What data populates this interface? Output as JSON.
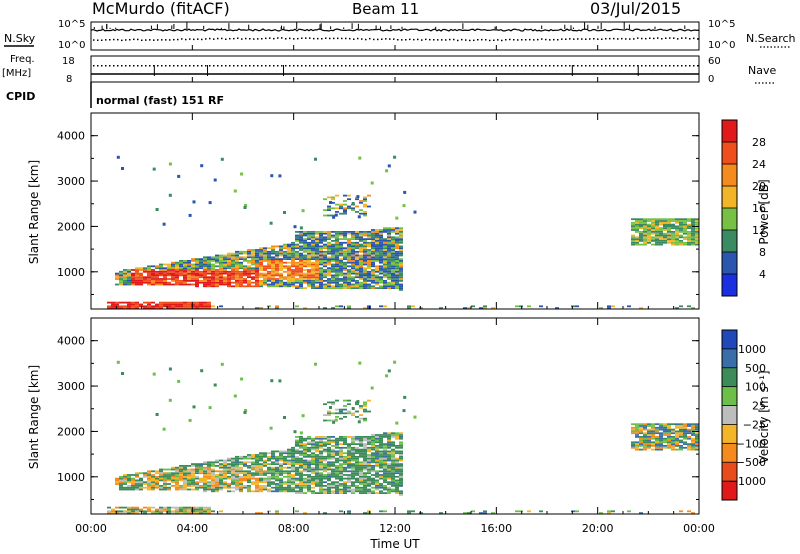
{
  "header": {
    "station": "McMurdo (fitACF)",
    "beam": "Beam 11",
    "date": "03/Jul/2015",
    "cpid_label": "CPID",
    "cpid_value": "normal (fast) 151 RF"
  },
  "noise_panel": {
    "left_label": "N.Sky",
    "right_label": "N.Search",
    "left_ticks": [
      "10^5",
      "10^0"
    ],
    "right_ticks": [
      "10^5",
      "10^0"
    ]
  },
  "freq_panel": {
    "left_label": "Freq.",
    "left_unit": "[MHz]",
    "right_label": "Nave",
    "left_ticks": [
      "18",
      "8"
    ],
    "right_ticks": [
      "60",
      "0"
    ]
  },
  "x_axis": {
    "label": "Time UT",
    "ticks": [
      "00:00",
      "04:00",
      "08:00",
      "12:00",
      "16:00",
      "20:00",
      "00:00"
    ]
  },
  "power_panel": {
    "ylabel": "Slant Range [km]",
    "yticks": [
      "1000",
      "2000",
      "3000",
      "4000"
    ],
    "colorbar_label": "Power [dB]",
    "colorbar_ticks": [
      "4",
      "8",
      "12",
      "16",
      "20",
      "24",
      "28"
    ],
    "colors": [
      "#1a2fe0",
      "#2a56b0",
      "#3a8a62",
      "#76c043",
      "#f2b52a",
      "#f58b1f",
      "#ef4f1c",
      "#e01a1a"
    ]
  },
  "velocity_panel": {
    "ylabel": "Slant Range [km]",
    "yticks": [
      "1000",
      "2000",
      "3000",
      "4000"
    ],
    "colorbar_label": "Velocity [m s⁻¹]",
    "colorbar_ticks": [
      "1000",
      "500",
      "100",
      "25",
      "−25",
      "−100",
      "−500",
      "−1000"
    ],
    "colors": [
      "#2048b8",
      "#3a6ea8",
      "#3c8c5a",
      "#6cc04a",
      "#bdbdbd",
      "#f5b52a",
      "#f58b1f",
      "#e84c1c",
      "#e01a1a"
    ]
  },
  "chart_data": [
    {
      "type": "heatmap",
      "name": "power",
      "title": "Beam 11",
      "x_range_hours": [
        0,
        24
      ],
      "y_range_km": [
        180,
        4500
      ],
      "regions": [
        {
          "x": [
            1.0,
            12.2
          ],
          "y": [
            600,
            1900
          ],
          "level": "low-mid",
          "note": "main scatter band"
        },
        {
          "x": [
            1.5,
            6.5
          ],
          "y": [
            640,
            1050
          ],
          "level": "high",
          "note": "strong echoes 24-30 dB"
        },
        {
          "x": [
            21.3,
            23.9
          ],
          "y": [
            1550,
            2100
          ],
          "level": "mid"
        },
        {
          "x": [
            0.5,
            4.5
          ],
          "y": [
            180,
            330
          ],
          "level": "high",
          "note": "near-range echoes"
        }
      ]
    },
    {
      "type": "heatmap",
      "name": "velocity",
      "x_range_hours": [
        0,
        24
      ],
      "y_range_km": [
        180,
        4500
      ],
      "regions": [
        {
          "x": [
            1.0,
            12.2
          ],
          "y": [
            600,
            1900
          ],
          "level": "mixed -100 to 100"
        },
        {
          "x": [
            21.3,
            23.9
          ],
          "y": [
            1550,
            2100
          ],
          "level": "mixed"
        }
      ]
    }
  ]
}
